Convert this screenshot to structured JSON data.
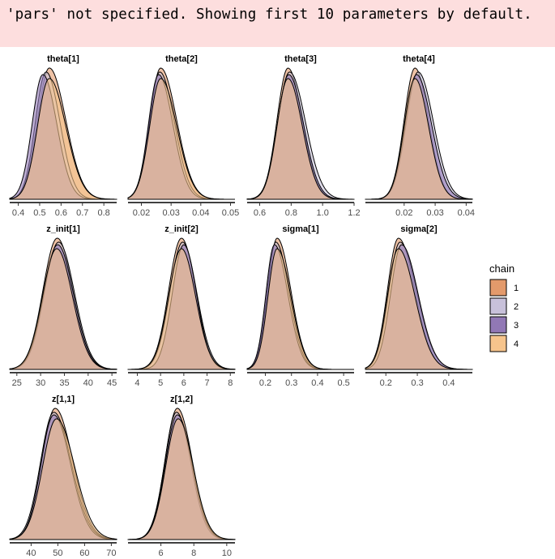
{
  "warning": {
    "message": "'pars' not specified. Showing first 10 parameters by default."
  },
  "colors": {
    "warning_bg": "#fddede",
    "chain_1": "#e39a6b",
    "chain_2": "#c8c1da",
    "chain_3": "#9178b5",
    "chain_4": "#f6c48c",
    "outline": "#000000"
  },
  "chart_data": {
    "type": "density",
    "legend": {
      "title": "chain",
      "placement": "right",
      "entries": [
        "1",
        "2",
        "3",
        "4"
      ]
    },
    "panels": [
      {
        "title": "theta[1]",
        "xlim": [
          0.36,
          0.86
        ],
        "ticks": [
          0.4,
          0.5,
          0.6,
          0.7,
          0.8
        ],
        "tick_labels": [
          "0.4",
          "0.5",
          "0.6",
          "0.7",
          "0.8"
        ],
        "peaks": [
          0.545,
          0.53,
          0.515,
          0.545
        ],
        "widths": [
          0.055,
          0.05,
          0.05,
          0.055
        ],
        "skew": [
          1.4,
          1.3,
          1.3,
          1.4
        ],
        "range": [
          0.36,
          0.86
        ]
      },
      {
        "title": "theta[2]",
        "xlim": [
          0.0155,
          0.0515
        ],
        "ticks": [
          0.02,
          0.03,
          0.04,
          0.05
        ],
        "tick_labels": [
          "0.02",
          "0.03",
          "0.04",
          "0.05"
        ],
        "peaks": [
          0.0265,
          0.0262,
          0.0258,
          0.0265
        ],
        "widths": [
          0.0037,
          0.0035,
          0.0034,
          0.0037
        ],
        "skew": [
          1.45,
          1.4,
          1.4,
          1.45
        ],
        "range": [
          0.0155,
          0.0515
        ]
      },
      {
        "title": "theta[3]",
        "xlim": [
          0.52,
          1.2
        ],
        "ticks": [
          0.6,
          0.8,
          1.0,
          1.2
        ],
        "tick_labels": [
          "0.6",
          "0.8",
          "1.0",
          "1.2"
        ],
        "peaks": [
          0.78,
          0.79,
          0.785,
          0.78
        ],
        "widths": [
          0.07,
          0.075,
          0.072,
          0.07
        ],
        "skew": [
          1.3,
          1.35,
          1.3,
          1.3
        ],
        "range": [
          0.52,
          1.2
        ]
      },
      {
        "title": "theta[4]",
        "xlim": [
          0.0075,
          0.042
        ],
        "ticks": [
          0.02,
          0.03,
          0.04
        ],
        "tick_labels": [
          "0.02",
          "0.03",
          "0.04"
        ],
        "peaks": [
          0.0235,
          0.0245,
          0.024,
          0.0235
        ],
        "widths": [
          0.0035,
          0.0038,
          0.0037,
          0.0035
        ],
        "skew": [
          1.25,
          1.3,
          1.3,
          1.25
        ],
        "range": [
          0.0075,
          0.042
        ]
      },
      {
        "title": "z_init[1]",
        "xlim": [
          23.5,
          46
        ],
        "ticks": [
          25,
          30,
          35,
          40,
          45
        ],
        "tick_labels": [
          "25",
          "30",
          "35",
          "40",
          "45"
        ],
        "peaks": [
          33.5,
          33.8,
          33.6,
          33.4
        ],
        "widths": [
          3.0,
          3.0,
          3.0,
          3.0
        ],
        "skew": [
          1.1,
          1.1,
          1.1,
          1.1
        ],
        "range": [
          23.5,
          46
        ]
      },
      {
        "title": "z_init[2]",
        "xlim": [
          3.6,
          8.2
        ],
        "ticks": [
          4,
          5,
          6,
          7,
          8
        ],
        "tick_labels": [
          "4",
          "5",
          "6",
          "7",
          "8"
        ],
        "peaks": [
          5.9,
          5.95,
          6.0,
          5.9
        ],
        "widths": [
          0.55,
          0.55,
          0.5,
          0.55
        ],
        "skew": [
          1.1,
          1.1,
          1.1,
          1.1
        ],
        "range": [
          3.6,
          8.2
        ]
      },
      {
        "title": "sigma[1]",
        "xlim": [
          0.13,
          0.54
        ],
        "ticks": [
          0.2,
          0.3,
          0.4,
          0.5
        ],
        "tick_labels": [
          "0.2",
          "0.3",
          "0.4",
          "0.5"
        ],
        "peaks": [
          0.245,
          0.24,
          0.235,
          0.245
        ],
        "widths": [
          0.035,
          0.034,
          0.033,
          0.035
        ],
        "skew": [
          1.5,
          1.5,
          1.55,
          1.5
        ],
        "range": [
          0.13,
          0.54
        ]
      },
      {
        "title": "sigma[2]",
        "xlim": [
          0.135,
          0.475
        ],
        "ticks": [
          0.2,
          0.3,
          0.4
        ],
        "tick_labels": [
          "0.2",
          "0.3",
          "0.4"
        ],
        "peaks": [
          0.24,
          0.245,
          0.25,
          0.24
        ],
        "widths": [
          0.035,
          0.036,
          0.035,
          0.035
        ],
        "skew": [
          1.5,
          1.5,
          1.5,
          1.5
        ],
        "range": [
          0.135,
          0.475
        ]
      },
      {
        "title": "z[1,1]",
        "xlim": [
          32,
          72
        ],
        "ticks": [
          40,
          50,
          60,
          70
        ],
        "tick_labels": [
          "40",
          "50",
          "60",
          "70"
        ],
        "peaks": [
          49,
          48.5,
          48.5,
          49.5
        ],
        "widths": [
          5.0,
          5.0,
          4.8,
          5.2
        ],
        "skew": [
          1.3,
          1.3,
          1.3,
          1.3
        ],
        "range": [
          32,
          72
        ]
      },
      {
        "title": "z[1,2]",
        "xlim": [
          4,
          10.5
        ],
        "ticks": [
          6,
          8,
          10
        ],
        "tick_labels": [
          "6",
          "8",
          "10"
        ],
        "peaks": [
          7.0,
          6.95,
          7.0,
          7.05
        ],
        "widths": [
          0.75,
          0.72,
          0.74,
          0.76
        ],
        "skew": [
          1.2,
          1.2,
          1.2,
          1.2
        ],
        "range": [
          4,
          10.5
        ]
      }
    ]
  }
}
